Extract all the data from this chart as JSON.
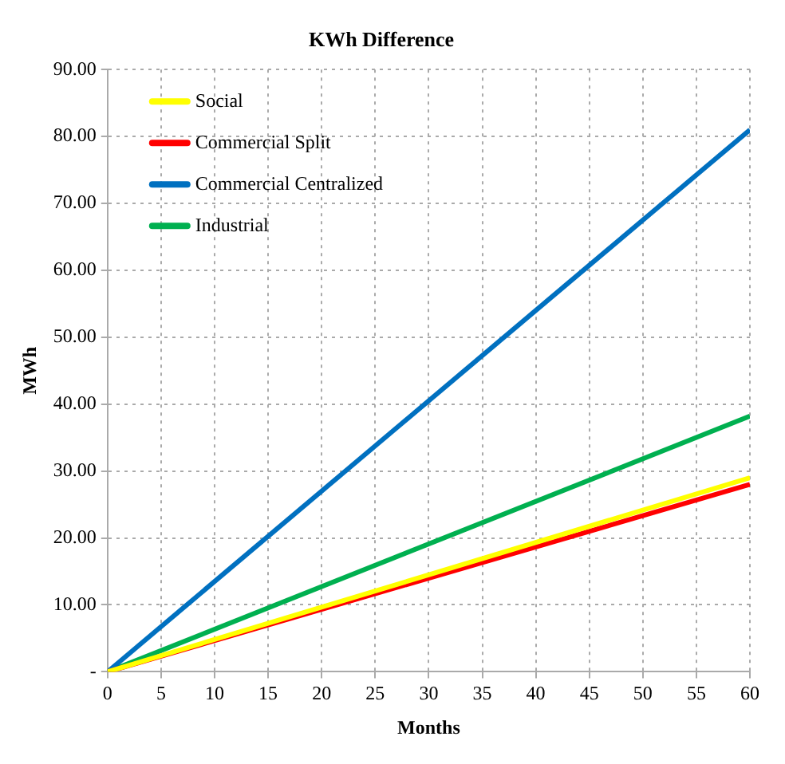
{
  "chart_data": {
    "type": "line",
    "title": "KWh Difference",
    "xlabel": "Months",
    "ylabel": "MWh",
    "x": [
      0,
      60
    ],
    "series": [
      {
        "name": "Social",
        "color": "#ffff00",
        "values": [
          0,
          29
        ]
      },
      {
        "name": "Commercial Split",
        "color": "#ff0000",
        "values": [
          0,
          28
        ]
      },
      {
        "name": "Commercial Centralized",
        "color": "#0070c0",
        "values": [
          0,
          81
        ]
      },
      {
        "name": "Industrial",
        "color": "#00b050",
        "values": [
          0,
          38.2
        ]
      }
    ],
    "xlim": [
      0,
      60
    ],
    "xticks": [
      0,
      5,
      10,
      15,
      20,
      25,
      30,
      35,
      40,
      45,
      50,
      55,
      60
    ],
    "ylim": [
      0,
      90
    ],
    "yticks": [
      {
        "value": 0,
        "label": "-"
      },
      {
        "value": 10,
        "label": "10.00"
      },
      {
        "value": 20,
        "label": "20.00"
      },
      {
        "value": 30,
        "label": "30.00"
      },
      {
        "value": 40,
        "label": "40.00"
      },
      {
        "value": 50,
        "label": "50.00"
      },
      {
        "value": 60,
        "label": "60.00"
      },
      {
        "value": 70,
        "label": "70.00"
      },
      {
        "value": 80,
        "label": "80.00"
      },
      {
        "value": 90,
        "label": "90.00"
      }
    ],
    "grid": true,
    "legend": "top left",
    "marker": "none",
    "line_style": "solid"
  }
}
